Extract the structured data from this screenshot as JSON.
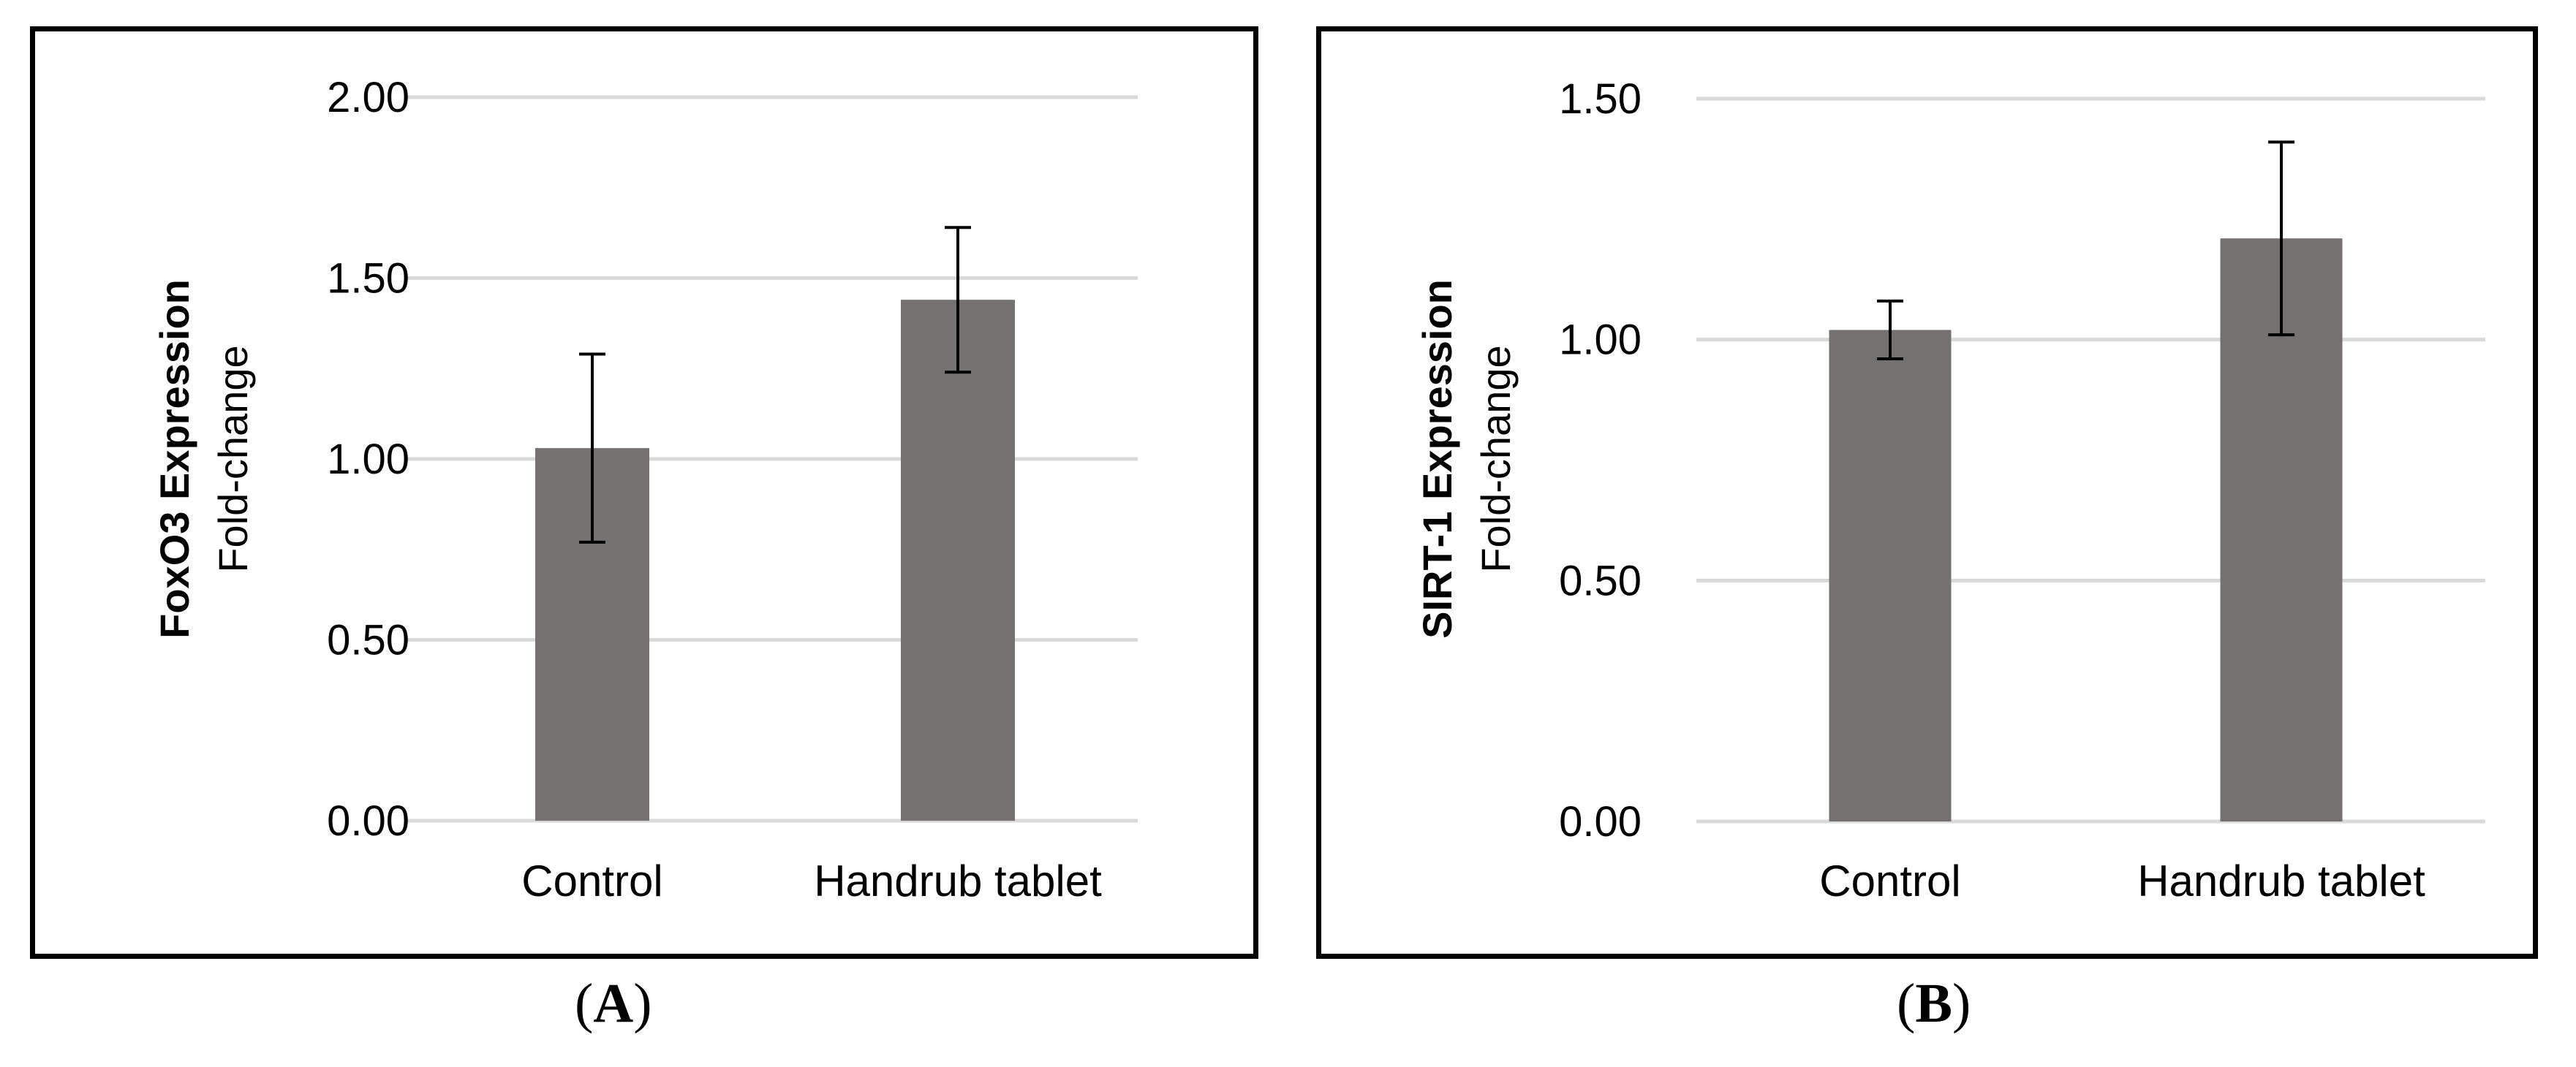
{
  "chart_data": [
    {
      "type": "bar",
      "categories": [
        "Control",
        "Handrub tablet"
      ],
      "values": [
        1.03,
        1.44
      ],
      "error": [
        0.26,
        0.2
      ],
      "ylabel_bold": "FoxO3 Expression",
      "ylabel": "Fold-change",
      "ylim": [
        0,
        2.0
      ],
      "ytick_labels": [
        "0.00",
        "0.50",
        "1.00",
        "1.50",
        "2.00"
      ],
      "grid": true,
      "panel_label": "A"
    },
    {
      "type": "bar",
      "categories": [
        "Control",
        "Handrub tablet"
      ],
      "values": [
        1.02,
        1.21
      ],
      "error": [
        0.06,
        0.2
      ],
      "ylabel_bold": "SIRT-1 Expression",
      "ylabel": "Fold-change",
      "ylim": [
        0,
        1.5
      ],
      "ytick_labels": [
        "0.00",
        "0.50",
        "1.00",
        "1.50"
      ],
      "grid": true,
      "panel_label": "B"
    }
  ],
  "colors": {
    "bar": "#767171",
    "grid": "#d9d9d9",
    "error_bar": "#000000",
    "text": "#000000"
  },
  "panel_labels": {
    "a": "A",
    "b": "B"
  },
  "parens": {
    "open": "(",
    "close": ")"
  }
}
